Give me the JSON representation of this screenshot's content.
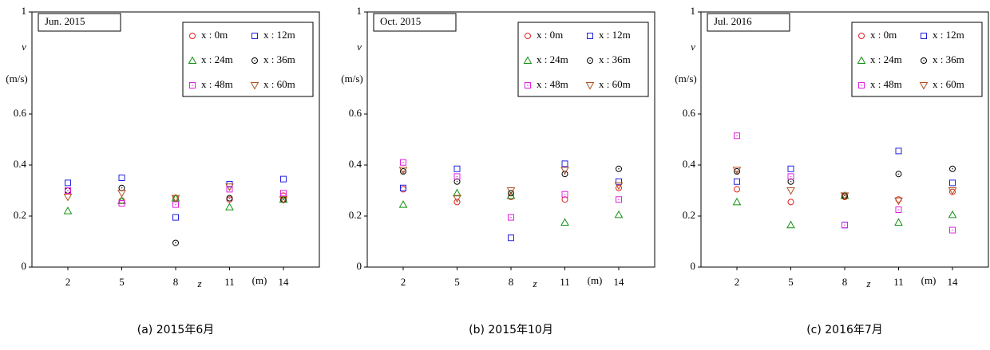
{
  "chart_data": [
    {
      "type": "scatter",
      "title": "Jun. 2015",
      "ylabel": "v",
      "ylabel_unit": "(m/s)",
      "xlabel": "z",
      "xlabel_unit": "(m)",
      "caption": "(a) 2015年6月",
      "x": [
        2,
        5,
        8,
        11,
        14
      ],
      "xlim": [
        0,
        16
      ],
      "xticks": [
        2,
        5,
        8,
        11,
        14
      ],
      "ylim": [
        0,
        1
      ],
      "yticks": [
        0,
        0.2,
        0.4,
        0.6,
        1
      ],
      "grid": false,
      "legend": "upper right",
      "series": [
        {
          "name": "x : 0m",
          "color": "#e02020",
          "marker": "circle",
          "values": [
            0.3,
            0.26,
            0.27,
            0.265,
            0.28
          ]
        },
        {
          "name": "x : 12m",
          "color": "#2020e0",
          "marker": "square",
          "values": [
            0.33,
            0.35,
            0.195,
            0.325,
            0.345
          ]
        },
        {
          "name": "x : 24m",
          "color": "#109010",
          "marker": "triangle",
          "values": [
            0.22,
            0.26,
            0.27,
            0.235,
            0.265
          ]
        },
        {
          "name": "x : 36m",
          "color": "#000000",
          "marker": "dot-circle",
          "values": [
            0.3,
            0.31,
            0.095,
            0.27,
            0.265
          ]
        },
        {
          "name": "x : 48m",
          "color": "#e020e0",
          "marker": "dot-square",
          "values": [
            0.3,
            0.25,
            0.245,
            0.305,
            0.29
          ]
        },
        {
          "name": "x : 60m",
          "color": "#b05020",
          "marker": "triangle-down",
          "values": [
            0.275,
            0.29,
            0.27,
            0.315,
            0.265
          ]
        }
      ]
    },
    {
      "type": "scatter",
      "title": "Oct. 2015",
      "ylabel": "v",
      "ylabel_unit": "(m/s)",
      "xlabel": "z",
      "xlabel_unit": "(m)",
      "caption": "(b) 2015年10月",
      "x": [
        2,
        5,
        8,
        11,
        14
      ],
      "xlim": [
        0,
        16
      ],
      "xticks": [
        2,
        5,
        8,
        11,
        14
      ],
      "ylim": [
        0,
        1
      ],
      "yticks": [
        0,
        0.2,
        0.4,
        0.6,
        1
      ],
      "grid": false,
      "legend": "upper right",
      "series": [
        {
          "name": "x : 0m",
          "color": "#e02020",
          "marker": "circle",
          "values": [
            0.305,
            0.255,
            0.275,
            0.265,
            0.31
          ]
        },
        {
          "name": "x : 12m",
          "color": "#2020e0",
          "marker": "square",
          "values": [
            0.31,
            0.385,
            0.115,
            0.405,
            0.335
          ]
        },
        {
          "name": "x : 24m",
          "color": "#109010",
          "marker": "triangle",
          "values": [
            0.245,
            0.29,
            0.28,
            0.175,
            0.205
          ]
        },
        {
          "name": "x : 36m",
          "color": "#000000",
          "marker": "dot-circle",
          "values": [
            0.375,
            0.335,
            0.29,
            0.365,
            0.385
          ]
        },
        {
          "name": "x : 48m",
          "color": "#e020e0",
          "marker": "dot-square",
          "values": [
            0.41,
            0.355,
            0.195,
            0.285,
            0.265
          ]
        },
        {
          "name": "x : 60m",
          "color": "#b05020",
          "marker": "triangle-down",
          "values": [
            0.38,
            0.27,
            0.3,
            0.38,
            0.32
          ]
        }
      ]
    },
    {
      "type": "scatter",
      "title": "Jul. 2016",
      "ylabel": "v",
      "ylabel_unit": "(m/s)",
      "xlabel": "z",
      "xlabel_unit": "(m)",
      "caption": "(c) 2016年7月",
      "x": [
        2,
        5,
        8,
        11,
        14
      ],
      "xlim": [
        0,
        16
      ],
      "xticks": [
        2,
        5,
        8,
        11,
        14
      ],
      "ylim": [
        0,
        1
      ],
      "yticks": [
        0,
        0.2,
        0.4,
        0.6,
        1
      ],
      "grid": false,
      "legend": "upper right",
      "series": [
        {
          "name": "x : 0m",
          "color": "#e02020",
          "marker": "circle",
          "values": [
            0.305,
            0.255,
            0.275,
            0.265,
            0.295
          ]
        },
        {
          "name": "x : 12m",
          "color": "#2020e0",
          "marker": "square",
          "values": [
            0.335,
            0.385,
            0.165,
            0.455,
            0.33
          ]
        },
        {
          "name": "x : 24m",
          "color": "#109010",
          "marker": "triangle",
          "values": [
            0.255,
            0.165,
            0.28,
            0.175,
            0.205
          ]
        },
        {
          "name": "x : 36m",
          "color": "#000000",
          "marker": "dot-circle",
          "values": [
            0.375,
            0.335,
            0.28,
            0.365,
            0.385
          ]
        },
        {
          "name": "x : 48m",
          "color": "#e020e0",
          "marker": "dot-square",
          "values": [
            0.515,
            0.355,
            0.165,
            0.225,
            0.145
          ]
        },
        {
          "name": "x : 60m",
          "color": "#b05020",
          "marker": "triangle-down",
          "values": [
            0.38,
            0.3,
            0.28,
            0.26,
            0.3
          ]
        }
      ]
    }
  ]
}
